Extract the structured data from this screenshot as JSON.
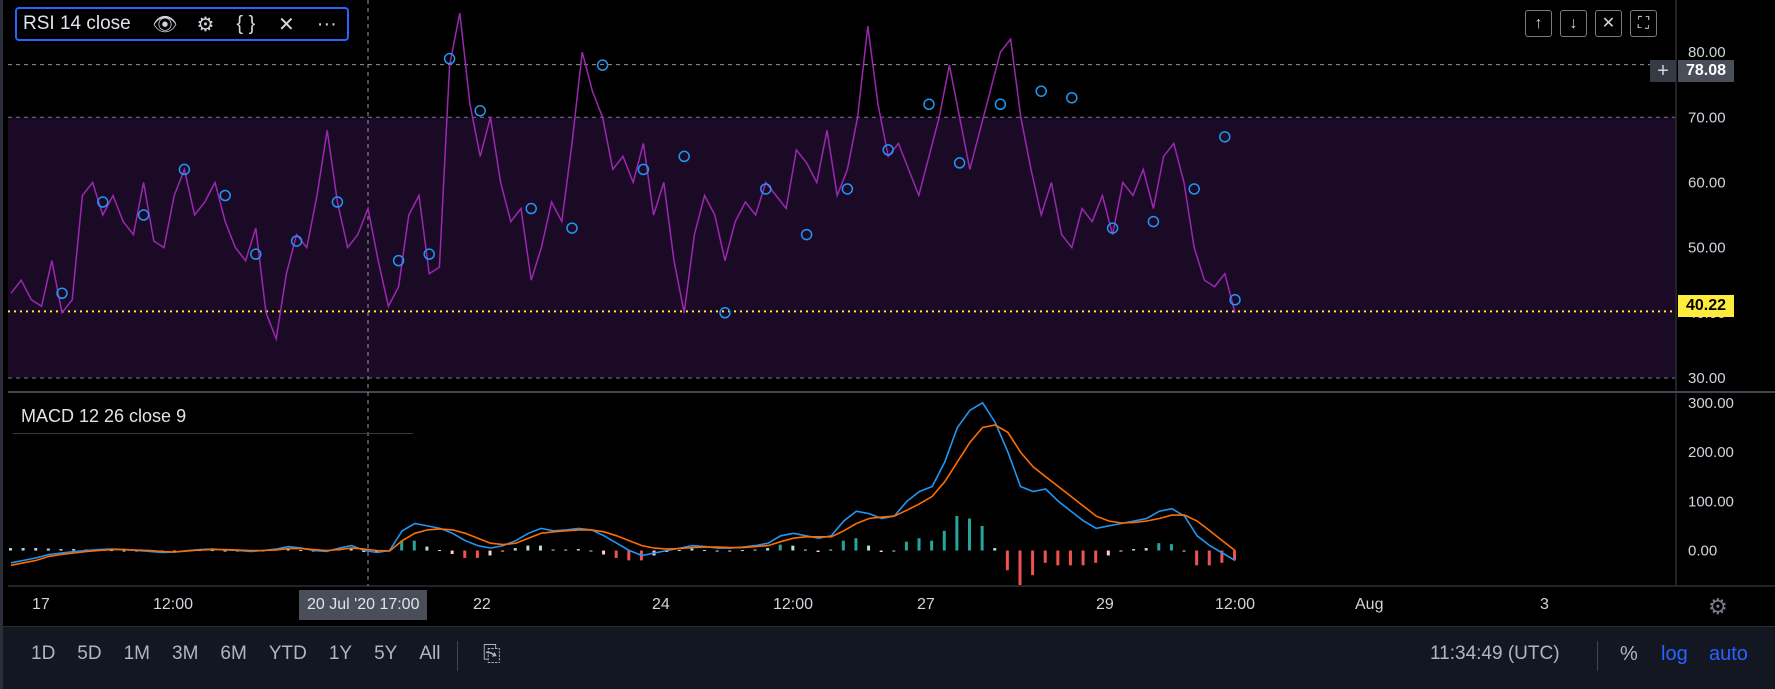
{
  "rsi_legend": {
    "label": "RSI 14 close",
    "icons": [
      "eye-icon",
      "gear-icon",
      "braces-icon",
      "close-icon",
      "more-icon"
    ]
  },
  "macd_legend": {
    "label": "MACD 12 26 close 9"
  },
  "pane_buttons": [
    {
      "name": "move-up-icon",
      "glyph": "↑"
    },
    {
      "name": "move-down-icon",
      "glyph": "↓"
    },
    {
      "name": "close-pane-icon",
      "glyph": "✕"
    },
    {
      "name": "maximize-pane-icon",
      "glyph": "⛶"
    }
  ],
  "price_labels": {
    "cursor": "78.08",
    "last": "40.22"
  },
  "crosshair_date": "20 Jul '20   17:00",
  "time_axis": [
    "17",
    "12:00",
    "22",
    "24",
    "12:00",
    "27",
    "29",
    "12:00",
    "Aug",
    "3"
  ],
  "bottom_bar": {
    "ranges": [
      "1D",
      "5D",
      "1M",
      "3M",
      "6M",
      "YTD",
      "1Y",
      "5Y",
      "All"
    ],
    "time": "11:34:49 (UTC)",
    "percent": "%",
    "log": "log",
    "auto": "auto"
  },
  "colors": {
    "rsi_line": "#9c27b0",
    "rsi_band": "#1a0a26",
    "markers": "#2196f3",
    "support": "#ffeb3b",
    "macd_line": "#2196f3",
    "signal_line": "#ff6d00",
    "hist_pos": "#26a69a",
    "hist_neg": "#ef5350",
    "accent": "#2962ff"
  },
  "chart_data": [
    {
      "type": "line",
      "title": "RSI 14 close",
      "ylim": [
        28,
        88
      ],
      "y_ticks": [
        "80.00",
        "70.00",
        "60.00",
        "50.00",
        "40.00",
        "30.00"
      ],
      "bands": {
        "upper": 70,
        "lower": 30
      },
      "support_level": 40.22,
      "cursor_level": 78.08,
      "series": [
        {
          "values": [
            43,
            45,
            42,
            41,
            48,
            40,
            42,
            58,
            60,
            55,
            58,
            54,
            52,
            60,
            51,
            50,
            58,
            62,
            55,
            57,
            60,
            54,
            50,
            48,
            53,
            40,
            36,
            46,
            52,
            50,
            58,
            68,
            57,
            50,
            52,
            56,
            48,
            41,
            44,
            55,
            58,
            46,
            47,
            78,
            86,
            72,
            64,
            70,
            60,
            54,
            56,
            45,
            50,
            57,
            54,
            66,
            80,
            74,
            70,
            62,
            64,
            60,
            66,
            55,
            60,
            48,
            40,
            52,
            58,
            55,
            48,
            54,
            57,
            55,
            60,
            58,
            56,
            65,
            63,
            60,
            68,
            58,
            62,
            70,
            84,
            72,
            64,
            66,
            62,
            58,
            64,
            70,
            78,
            70,
            62,
            68,
            74,
            80,
            82,
            70,
            62,
            55,
            60,
            52,
            50,
            56,
            54,
            58,
            52,
            60,
            58,
            62,
            56,
            64,
            66,
            60,
            50,
            45,
            44,
            46,
            40
          ],
          "markers": [
            {
              "i": 5,
              "v": 43
            },
            {
              "i": 9,
              "v": 57
            },
            {
              "i": 13,
              "v": 55
            },
            {
              "i": 17,
              "v": 62
            },
            {
              "i": 21,
              "v": 58
            },
            {
              "i": 24,
              "v": 49
            },
            {
              "i": 28,
              "v": 51
            },
            {
              "i": 32,
              "v": 57
            },
            {
              "i": 38,
              "v": 48
            },
            {
              "i": 41,
              "v": 49
            },
            {
              "i": 43,
              "v": 79
            },
            {
              "i": 46,
              "v": 71
            },
            {
              "i": 51,
              "v": 56
            },
            {
              "i": 55,
              "v": 53
            },
            {
              "i": 58,
              "v": 78
            },
            {
              "i": 62,
              "v": 62
            },
            {
              "i": 66,
              "v": 64
            },
            {
              "i": 70,
              "v": 40
            },
            {
              "i": 74,
              "v": 59
            },
            {
              "i": 78,
              "v": 52
            },
            {
              "i": 82,
              "v": 59
            },
            {
              "i": 86,
              "v": 65
            },
            {
              "i": 90,
              "v": 72
            },
            {
              "i": 93,
              "v": 63
            },
            {
              "i": 97,
              "v": 72
            },
            {
              "i": 101,
              "v": 74
            },
            {
              "i": 104,
              "v": 73
            },
            {
              "i": 108,
              "v": 53
            },
            {
              "i": 112,
              "v": 54
            },
            {
              "i": 116,
              "v": 59
            },
            {
              "i": 119,
              "v": 67
            },
            {
              "i": 120,
              "v": 42
            }
          ]
        }
      ]
    },
    {
      "type": "line",
      "title": "MACD 12 26 close 9",
      "ylim": [
        -70,
        320
      ],
      "y_ticks": [
        "300.00",
        "200.00",
        "100.00",
        "0.00"
      ],
      "series": [
        {
          "values": [
            -25,
            -20,
            -15,
            -8,
            -5,
            -2,
            0,
            2,
            3,
            2,
            0,
            -2,
            -4,
            -3,
            0,
            2,
            3,
            1,
            0,
            -2,
            0,
            3,
            8,
            5,
            0,
            -2,
            5,
            10,
            0,
            -4,
            0,
            40,
            55,
            50,
            45,
            35,
            20,
            10,
            5,
            10,
            20,
            35,
            45,
            40,
            42,
            45,
            42,
            30,
            15,
            0,
            -10,
            -5,
            0,
            5,
            10,
            8,
            5,
            5,
            7,
            10,
            15,
            30,
            35,
            30,
            25,
            30,
            60,
            80,
            75,
            65,
            70,
            100,
            120,
            130,
            180,
            250,
            285,
            300,
            260,
            200,
            130,
            120,
            125,
            100,
            80,
            60,
            45,
            50,
            55,
            60,
            65,
            80,
            85,
            70,
            30,
            10,
            -5,
            -20
          ]
        },
        {
          "values": [
            -30,
            -25,
            -20,
            -12,
            -8,
            -5,
            -2,
            0,
            2,
            2,
            1,
            0,
            -2,
            -3,
            -1,
            1,
            2,
            2,
            1,
            0,
            0,
            1,
            4,
            4,
            2,
            0,
            2,
            5,
            3,
            0,
            -1,
            20,
            35,
            42,
            44,
            42,
            35,
            25,
            15,
            12,
            15,
            25,
            35,
            38,
            40,
            42,
            42,
            38,
            30,
            20,
            10,
            5,
            3,
            4,
            6,
            7,
            7,
            6,
            6,
            8,
            10,
            18,
            25,
            28,
            28,
            28,
            40,
            55,
            65,
            68,
            70,
            82,
            95,
            110,
            140,
            180,
            220,
            250,
            255,
            240,
            200,
            170,
            150,
            130,
            110,
            90,
            70,
            60,
            56,
            57,
            60,
            65,
            72,
            72,
            60,
            40,
            20,
            0
          ]
        },
        {
          "histogram": [
            5,
            5,
            5,
            4,
            3,
            3,
            2,
            2,
            1,
            0,
            -1,
            -2,
            -2,
            0,
            1,
            1,
            1,
            -1,
            -1,
            -2,
            0,
            2,
            4,
            1,
            -2,
            -2,
            3,
            5,
            -3,
            -4,
            1,
            20,
            20,
            8,
            1,
            -7,
            -15,
            -15,
            -10,
            -2,
            5,
            10,
            10,
            2,
            2,
            3,
            0,
            -8,
            -15,
            -20,
            -20,
            -10,
            -3,
            1,
            4,
            1,
            -2,
            -1,
            1,
            2,
            5,
            12,
            10,
            2,
            -3,
            2,
            20,
            25,
            10,
            -3,
            0,
            18,
            25,
            20,
            40,
            70,
            65,
            50,
            5,
            -40,
            -70,
            -50,
            -25,
            -30,
            -30,
            -30,
            -25,
            -10,
            -1,
            3,
            5,
            15,
            13,
            -2,
            -30,
            -30,
            -25,
            -20
          ]
        }
      ]
    }
  ]
}
